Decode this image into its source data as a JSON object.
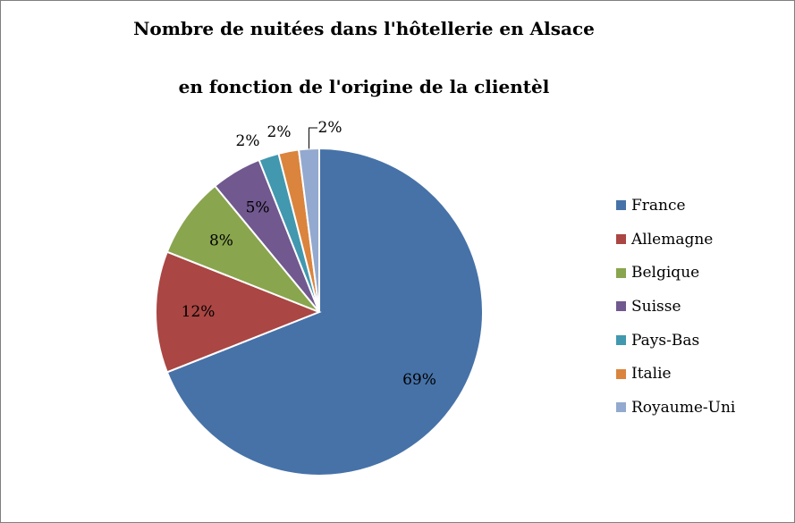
{
  "chart_data": {
    "type": "pie",
    "title_line1": "Nombre de nuitées dans l'hôtellerie en Alsace",
    "title_line2": "en fonction de l'origine de la clientèl",
    "categories": [
      "France",
      "Allemagne",
      "Belgique",
      "Suisse",
      "Pays-Bas",
      "Italie",
      "Royaume-Uni"
    ],
    "values": [
      69,
      12,
      8,
      5,
      2,
      2,
      2
    ],
    "value_labels": [
      "69%",
      "12%",
      "8%",
      "5%",
      "2%",
      "2%",
      "2%"
    ],
    "colors": [
      "#4672a8",
      "#aa4643",
      "#89a54e",
      "#71588f",
      "#4198af",
      "#db843d",
      "#93a9cf"
    ],
    "legend_position": "right"
  }
}
